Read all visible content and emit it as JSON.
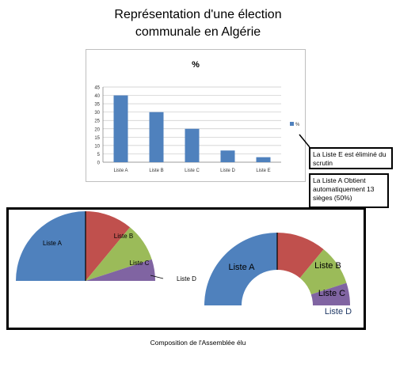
{
  "title_line1": "Représentation d'une élection",
  "title_line2": "communale en Algérie",
  "caption": "Composition de l'Assemblée élu",
  "callouts": {
    "liste_e": "La Liste E est éliminé du scrutin",
    "liste_a": "La Liste A Obtient automatiquement 13 sièges (50%)"
  },
  "colors": {
    "blue": "#4f81bd",
    "red": "#c0504d",
    "green": "#9bbb59",
    "purple": "#8064a2"
  },
  "chart_data": [
    {
      "type": "bar",
      "title": "%",
      "categories": [
        "Liste A",
        "Liste B",
        "Liste C",
        "Liste D",
        "Liste E"
      ],
      "series": [
        {
          "name": "%",
          "values": [
            40,
            30,
            20,
            7,
            3
          ]
        }
      ],
      "ylim": [
        0,
        45
      ],
      "yticks": [
        0,
        5,
        10,
        15,
        20,
        25,
        30,
        35,
        40,
        45
      ],
      "grid": true,
      "legend": "right"
    },
    {
      "type": "pie",
      "subtype": "semicircle",
      "slices": [
        {
          "label": "Liste A",
          "value": 50
        },
        {
          "label": "Liste B",
          "value": 22
        },
        {
          "label": "Liste C",
          "value": 18
        },
        {
          "label": "Liste D",
          "value": 10
        }
      ]
    },
    {
      "type": "pie",
      "subtype": "semicircle-donut",
      "slices": [
        {
          "label": "Liste A",
          "value": 50
        },
        {
          "label": "Liste B",
          "value": 22
        },
        {
          "label": "Liste C",
          "value": 18
        },
        {
          "label": "Liste D",
          "value": 10
        }
      ]
    }
  ]
}
